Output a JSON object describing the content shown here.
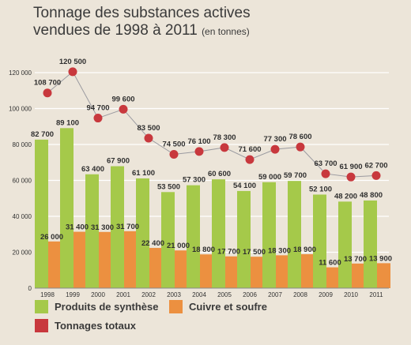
{
  "chart_data": {
    "type": "bar",
    "title_line1": "Tonnage des substances actives",
    "title_line2": "vendues de 1998 à 2011",
    "title_unit": "(en tonnes)",
    "categories": [
      "1998",
      "1999",
      "2000",
      "2001",
      "2002",
      "2003",
      "2004",
      "2005",
      "2006",
      "2007",
      "2008",
      "2009",
      "2010",
      "2011"
    ],
    "series": [
      {
        "name": "Produits de synthèse",
        "color": "#a5c94a",
        "values": [
          82700,
          89100,
          63400,
          67900,
          61100,
          53500,
          57300,
          60600,
          54100,
          59000,
          59700,
          52100,
          48200,
          48800
        ],
        "labels": [
          "82 700",
          "89 100",
          "63 400",
          "67 900",
          "61 100",
          "53 500",
          "57 300",
          "60 600",
          "54 100",
          "59 000",
          "59 700",
          "52 100",
          "48 200",
          "48 800"
        ]
      },
      {
        "name": "Cuivre et soufre",
        "color": "#ec9040",
        "values": [
          26000,
          31400,
          31300,
          31700,
          22400,
          21000,
          18800,
          17700,
          17500,
          18300,
          18900,
          11600,
          13700,
          13900
        ],
        "labels": [
          "26 000",
          "31 400",
          "31 300",
          "31 700",
          "22 400",
          "21 000",
          "18 800",
          "17 700",
          "17 500",
          "18 300",
          "18 900",
          "11 600",
          "13 700",
          "13 900"
        ]
      },
      {
        "name": "Tonnages totaux",
        "type": "line",
        "color": "#c8383d",
        "values": [
          108700,
          120500,
          94700,
          99600,
          83500,
          74500,
          76100,
          78300,
          71600,
          77300,
          78600,
          63700,
          61900,
          62700
        ],
        "labels": [
          "108 700",
          "120 500",
          "94 700",
          "99 600",
          "83 500",
          "74 500",
          "76 100",
          "78 300",
          "71 600",
          "77 300",
          "78 600",
          "63 700",
          "61 900",
          "62 700"
        ]
      }
    ],
    "ylim": [
      0,
      120000
    ],
    "yticks": [
      0,
      20000,
      40000,
      60000,
      80000,
      100000,
      120000
    ],
    "ytick_labels": [
      "0",
      "20 000",
      "40 000",
      "60 000",
      "80 000",
      "100 000",
      "120 000"
    ],
    "grid": true,
    "legend_position": "bottom-left"
  }
}
